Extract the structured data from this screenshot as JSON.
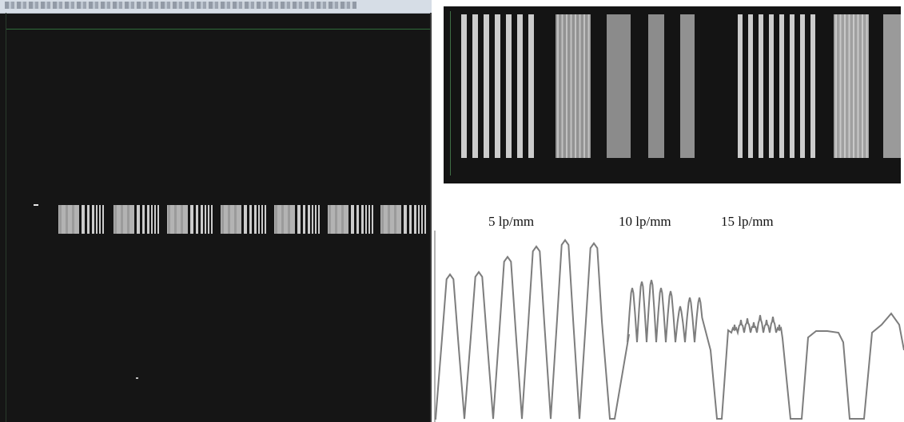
{
  "labels": {
    "freq_5": "5 lp/mm",
    "freq_10": "10 lp/mm",
    "freq_15": "15 lp/mm"
  },
  "colors": {
    "background": "#151515",
    "stripe": "#d9d9d9",
    "profile_line": "#7d7d7d",
    "guide": "#2f6b3a"
  },
  "icons": {
    "camera_view": "resolution-target-image",
    "zoom_view": "zoomed-target-image",
    "profile": "intensity-profile-plot"
  }
}
